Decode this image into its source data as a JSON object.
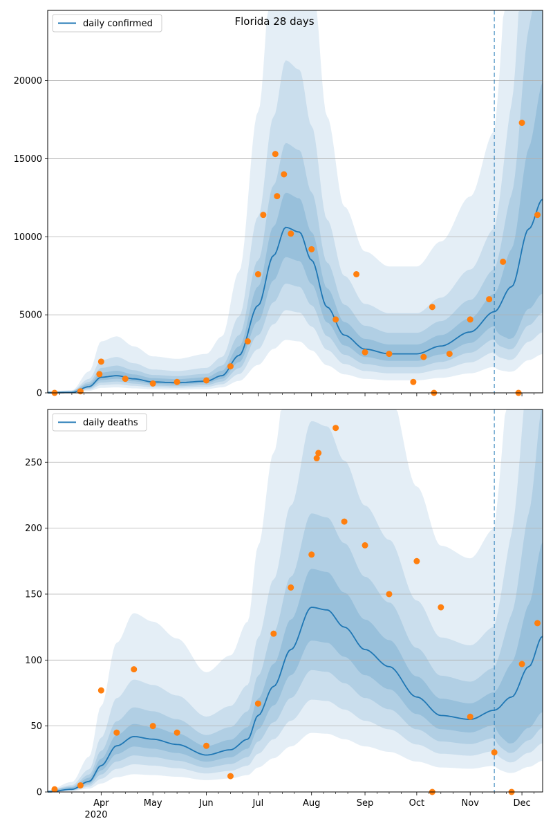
{
  "figure": {
    "title": "Florida 28 days"
  },
  "chart_data": [
    {
      "type": "line",
      "title": "Florida 28 days",
      "xlabel": "",
      "ylabel": "",
      "x_range": [
        "2020-03-01",
        "2020-12-13"
      ],
      "ylim": [
        0,
        24500
      ],
      "y_ticks": [
        0,
        5000,
        10000,
        15000,
        20000
      ],
      "grid": "horizontal",
      "legend_position": "top-left",
      "forecast_start": "2020-11-15",
      "series": [
        {
          "name": "daily confirmed",
          "kind": "line",
          "color": "#1f77b4",
          "x": [
            "2020-03-01",
            "2020-03-15",
            "2020-03-25",
            "2020-04-01",
            "2020-04-10",
            "2020-04-20",
            "2020-05-01",
            "2020-05-15",
            "2020-06-01",
            "2020-06-10",
            "2020-06-20",
            "2020-07-01",
            "2020-07-10",
            "2020-07-17",
            "2020-07-25",
            "2020-08-01",
            "2020-08-10",
            "2020-08-20",
            "2020-09-01",
            "2020-09-15",
            "2020-10-01",
            "2020-10-15",
            "2020-11-01",
            "2020-11-15",
            "2020-11-25",
            "2020-12-05",
            "2020-12-13"
          ],
          "values": [
            0,
            20,
            400,
            1000,
            1100,
            900,
            700,
            650,
            750,
            1100,
            2400,
            5600,
            8800,
            10600,
            10300,
            8500,
            5500,
            3700,
            2800,
            2500,
            2500,
            3000,
            3900,
            5200,
            6800,
            10500,
            12400
          ]
        },
        {
          "name": "",
          "kind": "scatter",
          "color": "#ff7f0e",
          "x": [
            "2020-03-05",
            "2020-03-20",
            "2020-03-31",
            "2020-04-01",
            "2020-04-15",
            "2020-05-01",
            "2020-05-15",
            "2020-06-01",
            "2020-06-15",
            "2020-06-25",
            "2020-07-01",
            "2020-07-04",
            "2020-07-11",
            "2020-07-12",
            "2020-07-16",
            "2020-07-20",
            "2020-08-01",
            "2020-08-15",
            "2020-08-27",
            "2020-09-01",
            "2020-09-15",
            "2020-09-29",
            "2020-10-05",
            "2020-10-10",
            "2020-10-11",
            "2020-10-20",
            "2020-11-01",
            "2020-11-12",
            "2020-11-20",
            "2020-11-29",
            "2020-12-01",
            "2020-12-10"
          ],
          "values": [
            0,
            100,
            1200,
            2000,
            900,
            600,
            700,
            800,
            1700,
            3300,
            7600,
            11400,
            15300,
            12600,
            14000,
            10200,
            9200,
            4700,
            7600,
            2600,
            2500,
            700,
            2300,
            5500,
            0,
            2500,
            4700,
            6000,
            8400,
            0,
            17300,
            11400
          ]
        }
      ]
    },
    {
      "type": "line",
      "title": "",
      "xlabel": "",
      "ylabel": "",
      "x_range": [
        "2020-03-01",
        "2020-12-13"
      ],
      "x_ticks": [
        "Apr",
        "May",
        "Jun",
        "Jul",
        "Aug",
        "Sep",
        "Oct",
        "Nov",
        "Dec"
      ],
      "x_year_label": "2020",
      "ylim": [
        0,
        290
      ],
      "y_ticks": [
        0,
        50,
        100,
        150,
        200,
        250
      ],
      "grid": "horizontal",
      "legend_position": "top-left",
      "forecast_start": "2020-11-15",
      "series": [
        {
          "name": "daily deaths",
          "kind": "line",
          "color": "#1f77b4",
          "x": [
            "2020-03-01",
            "2020-03-15",
            "2020-03-25",
            "2020-04-01",
            "2020-04-10",
            "2020-04-20",
            "2020-05-01",
            "2020-05-15",
            "2020-06-01",
            "2020-06-15",
            "2020-06-25",
            "2020-07-01",
            "2020-07-10",
            "2020-07-20",
            "2020-08-01",
            "2020-08-10",
            "2020-08-20",
            "2020-09-01",
            "2020-09-15",
            "2020-10-01",
            "2020-10-15",
            "2020-11-01",
            "2020-11-15",
            "2020-11-25",
            "2020-12-05",
            "2020-12-13"
          ],
          "values": [
            0,
            2,
            8,
            20,
            35,
            42,
            40,
            36,
            28,
            32,
            40,
            58,
            80,
            108,
            140,
            138,
            125,
            108,
            95,
            72,
            58,
            55,
            62,
            72,
            95,
            118
          ]
        },
        {
          "name": "",
          "kind": "scatter",
          "color": "#ff7f0e",
          "x": [
            "2020-03-05",
            "2020-03-20",
            "2020-04-01",
            "2020-04-10",
            "2020-04-20",
            "2020-05-01",
            "2020-05-15",
            "2020-06-01",
            "2020-06-15",
            "2020-07-01",
            "2020-07-10",
            "2020-07-20",
            "2020-08-01",
            "2020-08-04",
            "2020-08-05",
            "2020-08-15",
            "2020-08-20",
            "2020-09-01",
            "2020-09-15",
            "2020-10-01",
            "2020-10-10",
            "2020-10-15",
            "2020-11-01",
            "2020-11-15",
            "2020-11-25",
            "2020-12-01",
            "2020-12-10"
          ],
          "values": [
            2,
            5,
            77,
            45,
            93,
            50,
            45,
            35,
            12,
            67,
            120,
            155,
            180,
            253,
            257,
            276,
            205,
            187,
            150,
            175,
            0,
            140,
            57,
            30,
            0,
            97,
            128
          ]
        }
      ]
    }
  ]
}
